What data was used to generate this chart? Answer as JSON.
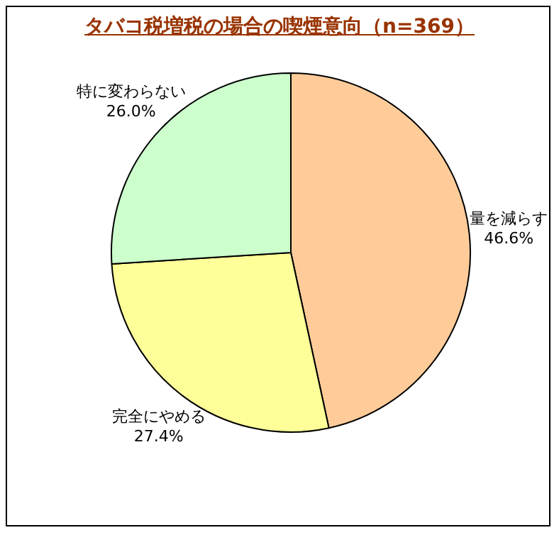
{
  "chart_data": {
    "type": "pie",
    "title": "タバコ税増税の場合の喫煙意向（n=369）",
    "categories": [
      "量を減らす",
      "完全にやめる",
      "特に変わらない"
    ],
    "values": [
      46.6,
      27.4,
      26.0
    ],
    "value_labels": [
      "46.6%",
      "27.4%",
      "26.0%"
    ],
    "colors": [
      "#ffcc99",
      "#ffff99",
      "#ccffcc"
    ],
    "legend": false
  }
}
